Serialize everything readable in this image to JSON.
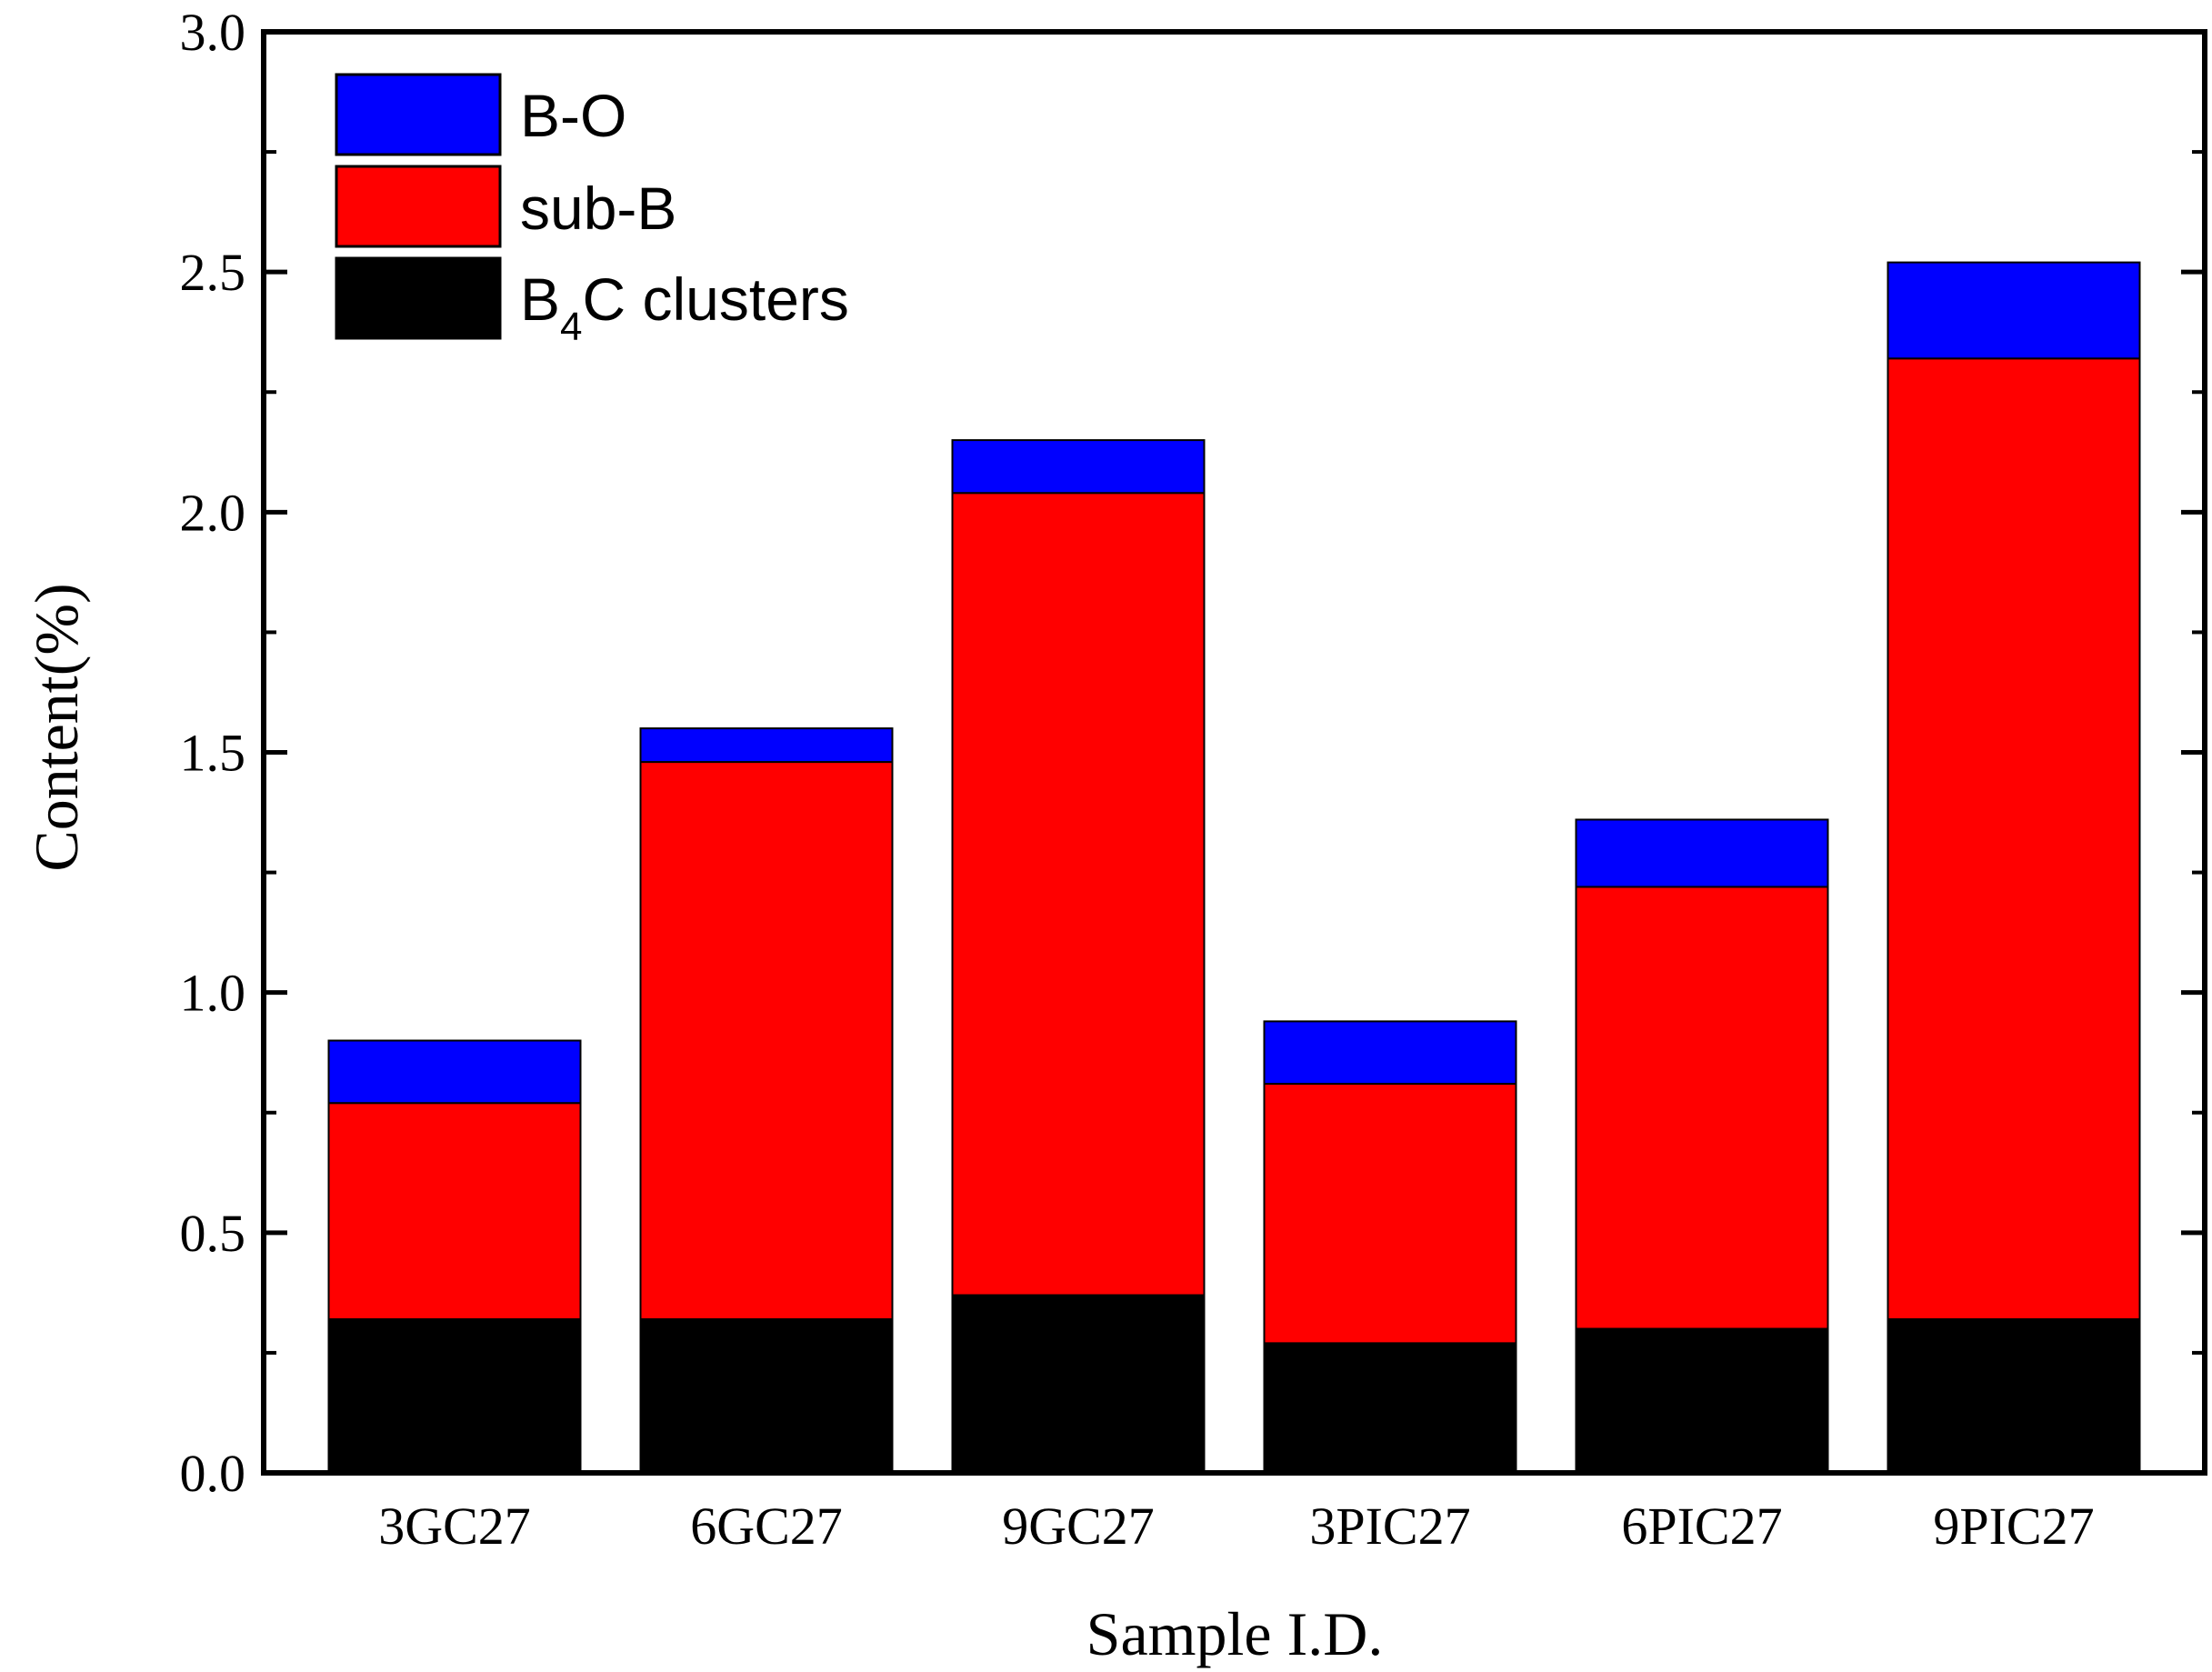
{
  "chart_data": {
    "type": "bar",
    "stacked": true,
    "title": "",
    "xlabel": "Sample I.D.",
    "ylabel": "Content(%)",
    "ylim": [
      0,
      3.0
    ],
    "yticks": [
      "0.0",
      "0.5",
      "1.0",
      "1.5",
      "2.0",
      "2.5",
      "3.0"
    ],
    "categories": [
      "3GC27",
      "6GC27",
      "9GC27",
      "3PIC27",
      "6PIC27",
      "9PIC27"
    ],
    "series": [
      {
        "name": "B4C clusters",
        "legend_main": "B",
        "legend_sub": "4",
        "legend_rest": "C clusters",
        "color": "#000000",
        "values": [
          0.32,
          0.32,
          0.37,
          0.27,
          0.3,
          0.32
        ]
      },
      {
        "name": "sub-B",
        "color": "#ff0000",
        "values": [
          0.45,
          1.16,
          1.67,
          0.54,
          0.92,
          2.0
        ]
      },
      {
        "name": "B-O",
        "color": "#0000ff",
        "values": [
          0.13,
          0.07,
          0.11,
          0.13,
          0.14,
          0.2
        ]
      }
    ],
    "legend_position": "top-left",
    "grid": false
  }
}
